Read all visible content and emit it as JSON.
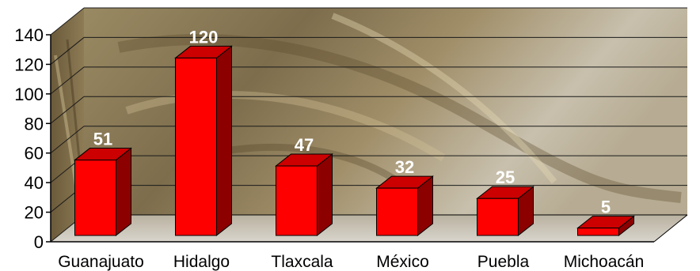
{
  "chart_data": {
    "type": "bar",
    "title": "",
    "xlabel": "",
    "ylabel": "",
    "categories": [
      "Guanajuato",
      "Hidalgo",
      "Tlaxcala",
      "México",
      "Puebla",
      "Michoacán"
    ],
    "values": [
      51,
      120,
      47,
      32,
      25,
      5
    ],
    "data_labels": [
      "51",
      "120",
      "47",
      "32",
      "25",
      "5"
    ],
    "ylim": [
      0,
      140
    ],
    "yticks": [
      0,
      20,
      40,
      60,
      80,
      100,
      120,
      140
    ],
    "ytick_labels": [
      "0",
      "20",
      "40",
      "60",
      "80",
      "100",
      "120",
      "140"
    ],
    "grid": true,
    "legend": "none",
    "style": "3d-column",
    "colors": {
      "bar_front": "#ff0000",
      "bar_side": "#8c0000",
      "bar_top": "#cc0000",
      "data_label": "#ffffff",
      "gridline": "#1a1a1a",
      "axis": "#000000",
      "background_photo": "#8f7d58"
    }
  }
}
